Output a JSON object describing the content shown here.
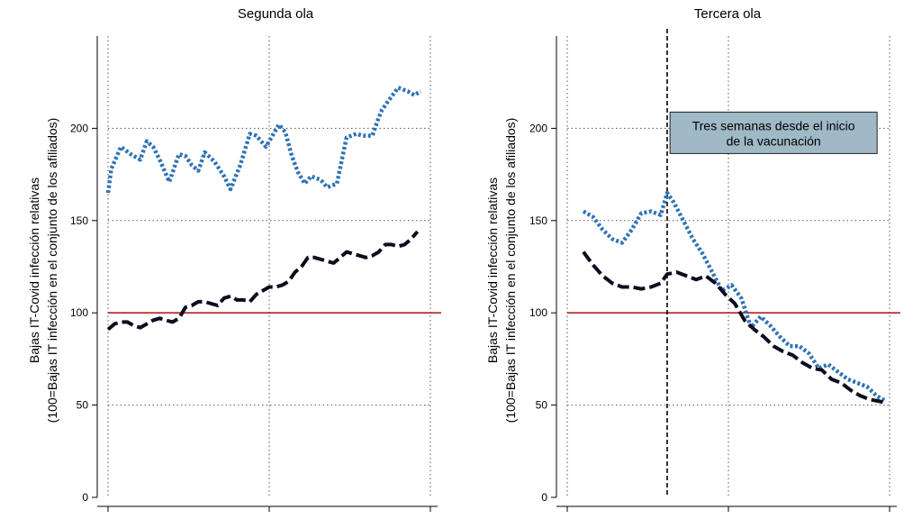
{
  "chart_data": [
    {
      "type": "line",
      "title": "Segunda ola",
      "ylabel": [
        "Bajas IT-Covid infección relativas",
        "(100=Bajas IT infección en el conjunto de los afiliados)"
      ],
      "ylim": [
        0,
        250
      ],
      "yticks": [
        0,
        50,
        100,
        150,
        200
      ],
      "xlim": [
        0,
        1
      ],
      "x_gridlines": [
        0,
        0.5,
        1
      ],
      "grid": true,
      "reference_line": {
        "y": 100,
        "color": "#b22222"
      },
      "series": [
        {
          "color": "#2f73b5",
          "style": "dotted",
          "x": [
            0,
            0.01,
            0.04,
            0.07,
            0.1,
            0.12,
            0.14,
            0.16,
            0.19,
            0.22,
            0.24,
            0.26,
            0.28,
            0.3,
            0.33,
            0.36,
            0.38,
            0.41,
            0.44,
            0.46,
            0.49,
            0.51,
            0.53,
            0.55,
            0.57,
            0.59,
            0.61,
            0.63,
            0.66,
            0.68,
            0.71,
            0.74,
            0.77,
            0.79,
            0.82,
            0.84,
            0.85,
            0.87,
            0.9,
            0.93,
            0.95,
            0.97
          ],
          "y": [
            165,
            178,
            190,
            186,
            183,
            193,
            190,
            183,
            171,
            186,
            185,
            180,
            177,
            187,
            182,
            174,
            167,
            180,
            197,
            196,
            190,
            196,
            202,
            198,
            185,
            176,
            170,
            174,
            172,
            168,
            170,
            195,
            197,
            196,
            196,
            206,
            210,
            215,
            222,
            220,
            218,
            220
          ]
        },
        {
          "color": "#0d0d1f",
          "style": "dashed",
          "x": [
            0,
            0.02,
            0.04,
            0.06,
            0.08,
            0.1,
            0.12,
            0.14,
            0.16,
            0.18,
            0.2,
            0.22,
            0.24,
            0.26,
            0.28,
            0.3,
            0.32,
            0.34,
            0.36,
            0.38,
            0.4,
            0.42,
            0.44,
            0.46,
            0.48,
            0.5,
            0.52,
            0.54,
            0.56,
            0.58,
            0.6,
            0.62,
            0.64,
            0.66,
            0.68,
            0.7,
            0.72,
            0.74,
            0.76,
            0.78,
            0.8,
            0.82,
            0.84,
            0.86,
            0.88,
            0.9,
            0.92,
            0.94,
            0.96
          ],
          "y": [
            91,
            94,
            95,
            95,
            93,
            92,
            94,
            96,
            97,
            96,
            95,
            97,
            103,
            104,
            106,
            106,
            105,
            104,
            108,
            109,
            107,
            107,
            106,
            110,
            112,
            114,
            114,
            115,
            117,
            122,
            125,
            130,
            130,
            129,
            128,
            127,
            130,
            133,
            132,
            131,
            130,
            131,
            133,
            137,
            137,
            136,
            137,
            140,
            144
          ]
        }
      ]
    },
    {
      "type": "line",
      "title": "Tercera ola",
      "ylabel": [
        "Bajas IT-Covid infección relativas",
        "(100=Bajas IT infección en el conjunto de los afiliados)"
      ],
      "ylim": [
        0,
        250
      ],
      "yticks": [
        0,
        50,
        100,
        150,
        200
      ],
      "xlim": [
        0,
        1
      ],
      "x_gridlines": [
        0,
        0.5,
        1
      ],
      "grid": true,
      "reference_line": {
        "y": 100,
        "color": "#b22222"
      },
      "vertical_marker": {
        "x": 0.31
      },
      "annotation": {
        "text": [
          "Tres semanas desde el inicio",
          "de la vacunación"
        ],
        "x": 0.33,
        "y": 200
      },
      "series": [
        {
          "color": "#2f73b5",
          "style": "dotted",
          "x": [
            0.05,
            0.08,
            0.11,
            0.14,
            0.17,
            0.2,
            0.23,
            0.26,
            0.29,
            0.31,
            0.33,
            0.36,
            0.39,
            0.42,
            0.45,
            0.48,
            0.51,
            0.54,
            0.57,
            0.6,
            0.63,
            0.66,
            0.69,
            0.72,
            0.75,
            0.78,
            0.81,
            0.84,
            0.87,
            0.9,
            0.93,
            0.96,
            0.99
          ],
          "y": [
            155,
            152,
            145,
            140,
            138,
            145,
            154,
            155,
            153,
            165,
            160,
            150,
            140,
            132,
            122,
            112,
            115,
            108,
            92,
            98,
            93,
            87,
            82,
            82,
            78,
            70,
            72,
            68,
            64,
            62,
            60,
            55,
            52
          ]
        },
        {
          "color": "#0d0d1f",
          "style": "dashed",
          "x": [
            0.05,
            0.08,
            0.11,
            0.14,
            0.17,
            0.2,
            0.23,
            0.26,
            0.29,
            0.31,
            0.34,
            0.37,
            0.4,
            0.43,
            0.46,
            0.49,
            0.52,
            0.55,
            0.58,
            0.61,
            0.64,
            0.67,
            0.7,
            0.73,
            0.76,
            0.79,
            0.82,
            0.85,
            0.88,
            0.91,
            0.94,
            0.97,
            0.99
          ],
          "y": [
            133,
            126,
            120,
            116,
            114,
            114,
            113,
            114,
            116,
            121,
            122,
            120,
            118,
            120,
            116,
            110,
            105,
            96,
            91,
            87,
            82,
            79,
            77,
            73,
            70,
            69,
            64,
            62,
            58,
            55,
            53,
            52,
            51
          ]
        }
      ]
    }
  ]
}
